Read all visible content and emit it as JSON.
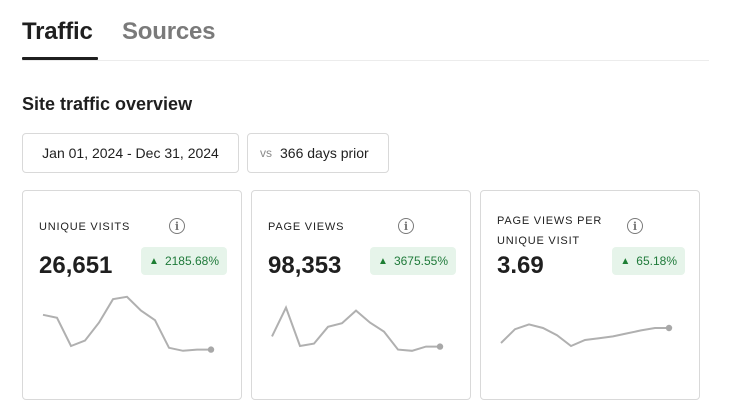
{
  "tabs": [
    {
      "label": "Traffic",
      "active": true
    },
    {
      "label": "Sources",
      "active": false
    }
  ],
  "section_title": "Site traffic overview",
  "filters": {
    "date_range": "Jan 01, 2024 - Dec 31, 2024",
    "compare_prefix": "vs",
    "compare_value": "366 days prior"
  },
  "colors": {
    "badge_bg": "#e6f4ea",
    "badge_text": "#1f7a3a",
    "sparkline": "#b0b0b0"
  },
  "icons": {
    "info": "i",
    "delta_up": "▲"
  },
  "metrics": [
    {
      "label": "UNIQUE VISITS",
      "value": "26,651",
      "delta": "2185.68%",
      "trend": [
        0.62,
        0.57,
        0.1,
        0.19,
        0.49,
        0.88,
        0.92,
        0.69,
        0.53,
        0.07,
        0.02,
        0.04,
        0.04
      ]
    },
    {
      "label": "PAGE VIEWS",
      "value": "98,353",
      "delta": "3675.55%",
      "trend": [
        0.26,
        0.74,
        0.1,
        0.14,
        0.42,
        0.48,
        0.69,
        0.49,
        0.34,
        0.04,
        0.02,
        0.09,
        0.09
      ]
    },
    {
      "label": "PAGE VIEWS PER UNIQUE VISIT",
      "value": "3.69",
      "delta": "65.18%",
      "trend": [
        0.15,
        0.38,
        0.46,
        0.4,
        0.28,
        0.1,
        0.2,
        0.23,
        0.26,
        0.31,
        0.36,
        0.4,
        0.4
      ]
    }
  ]
}
